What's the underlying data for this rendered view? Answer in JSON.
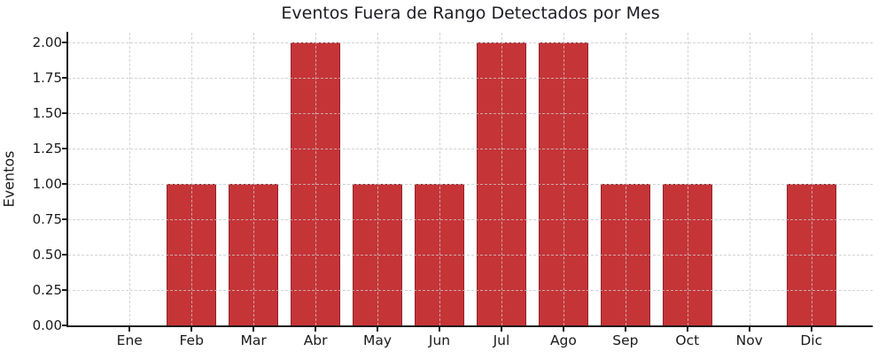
{
  "title": "Eventos Fuera de Rango Detectados por Mes",
  "chart_data": {
    "type": "bar",
    "title": "Eventos Fuera de Rango Detectados por Mes",
    "xlabel": "",
    "ylabel": "Eventos",
    "categories": [
      "Ene",
      "Feb",
      "Mar",
      "Abr",
      "May",
      "Jun",
      "Jul",
      "Ago",
      "Sep",
      "Oct",
      "Nov",
      "Dic"
    ],
    "values": [
      0,
      1,
      1,
      2,
      1,
      1,
      2,
      2,
      1,
      1,
      0,
      1
    ],
    "ylim": [
      0,
      2.07
    ],
    "yticks": [
      0.0,
      0.25,
      0.5,
      0.75,
      1.0,
      1.25,
      1.5,
      1.75,
      2.0
    ],
    "ytick_labels": [
      "0.00",
      "0.25",
      "0.50",
      "0.75",
      "1.00",
      "1.25",
      "1.50",
      "1.75",
      "2.00"
    ],
    "grid": true,
    "legend": "none",
    "colors": {
      "bar_fill": "#c53437",
      "bar_edge": "#93232a",
      "grid": "#c9c9c9",
      "axis": "#1a1a1a",
      "text": "#1a1a1a",
      "title": "#1c1c24",
      "background": "#ffffff"
    }
  }
}
